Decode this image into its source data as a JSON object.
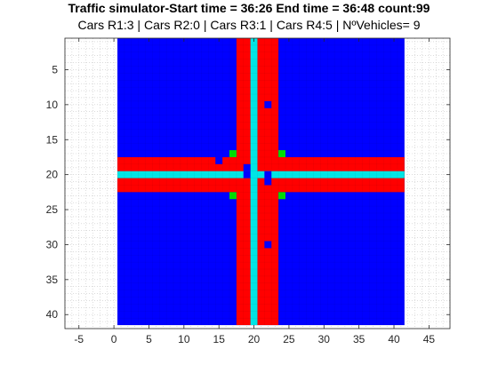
{
  "chart_data": {
    "type": "heatmap",
    "title": "Traffic simulator-Start time = 36:26 End time = 36:48 count:99",
    "subtitle": "Cars R1:3 |  Cars R2:0 |  Cars R3:1 | Cars R4:5 | NºVehicles= 9",
    "xlabel": "",
    "ylabel": "",
    "xlim": [
      -7,
      48
    ],
    "ylim": [
      0.5,
      42
    ],
    "x_ticks": [
      -5,
      0,
      5,
      10,
      15,
      20,
      25,
      30,
      35,
      40,
      45
    ],
    "y_ticks": [
      5,
      10,
      15,
      20,
      25,
      30,
      35,
      40
    ],
    "grid": "minor dotted",
    "y_direction": "reversed",
    "grid_extent": {
      "cols": [
        1,
        41
      ],
      "rows": [
        1,
        41
      ]
    },
    "colors": {
      "background": "#0000ff",
      "road": "#ff0000",
      "lane_divider": "#00e5e5",
      "car": "#0000ff",
      "signal": "#00dd00"
    },
    "regions": {
      "vertical_road": {
        "cols": [
          18,
          23
        ],
        "rows": [
          1,
          41
        ]
      },
      "horizontal_road": {
        "cols": [
          1,
          41
        ],
        "rows": [
          18,
          22
        ]
      },
      "vertical_divider": {
        "cols": [
          20,
          20
        ],
        "rows": [
          1,
          41
        ]
      },
      "horizontal_divider": {
        "cols": [
          1,
          41
        ],
        "rows": [
          20,
          20
        ]
      }
    },
    "cars": [
      {
        "x": 22,
        "y": 10
      },
      {
        "x": 22,
        "y": 30
      },
      {
        "x": 15,
        "y": 18
      },
      {
        "x": 19,
        "y": 19
      },
      {
        "x": 19,
        "y": 20
      },
      {
        "x": 22,
        "y": 20
      },
      {
        "x": 22,
        "y": 21
      }
    ],
    "signals": [
      {
        "x": 17,
        "y": 17
      },
      {
        "x": 24,
        "y": 17
      },
      {
        "x": 17,
        "y": 23
      },
      {
        "x": 24,
        "y": 23
      }
    ]
  }
}
